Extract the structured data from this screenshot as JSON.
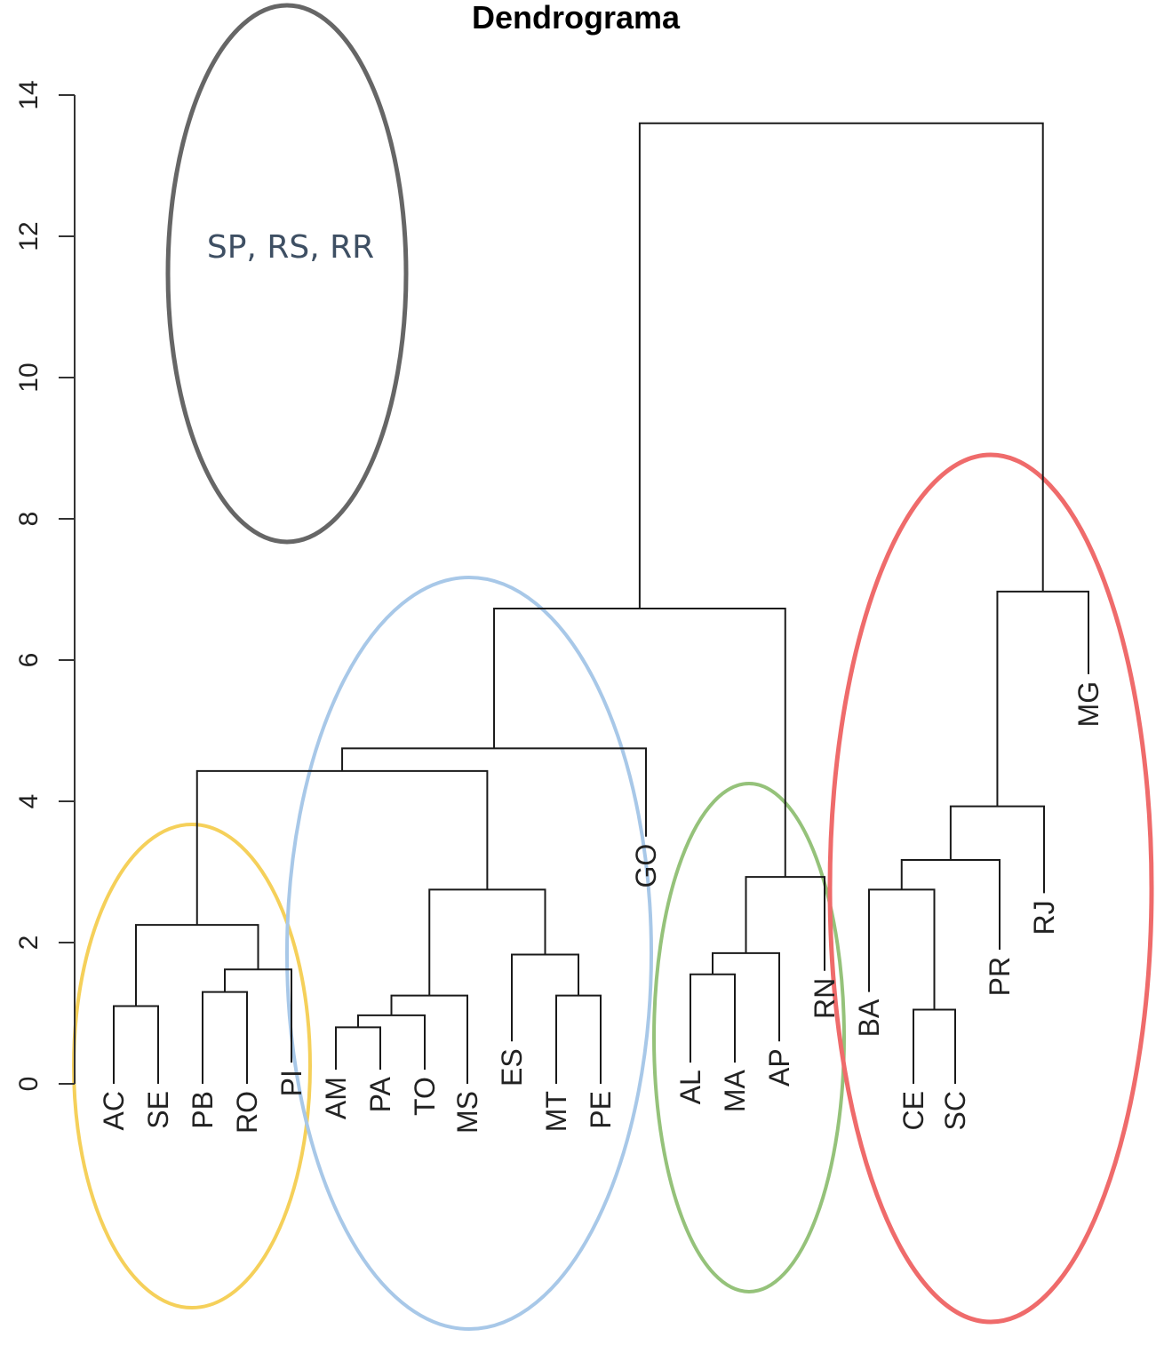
{
  "chart_data": {
    "type": "dendrogram",
    "title": "Dendrograma",
    "ylabel": "",
    "xlabel": "",
    "ylim": [
      0,
      14
    ],
    "yticks": [
      0,
      2,
      4,
      6,
      8,
      10,
      12,
      14
    ],
    "leaves": [
      "AC",
      "SE",
      "PB",
      "RO",
      "PI",
      "AM",
      "PA",
      "TO",
      "MS",
      "ES",
      "MT",
      "PE",
      "GO",
      "AL",
      "MA",
      "AP",
      "RN",
      "BA",
      "CE",
      "SC",
      "PR",
      "RJ",
      "MG"
    ],
    "leaf_heights": {
      "AC": 0,
      "SE": 0,
      "PB": 0,
      "RO": 0,
      "PI": 0.3,
      "AM": 0.2,
      "PA": 0.2,
      "TO": 0.2,
      "MS": 0,
      "ES": 0.6,
      "MT": 0,
      "PE": 0,
      "GO": 3.5,
      "AL": 0.3,
      "MA": 0.3,
      "AP": 0.6,
      "RN": 1.6,
      "BA": 1.3,
      "CE": 0,
      "SC": 0,
      "PR": 1.9,
      "RJ": 2.7,
      "MG": 5.8
    },
    "merges": [
      {
        "left": "AM",
        "right": "PA",
        "height": 0.8
      },
      {
        "left": "AC",
        "right": "SE",
        "height": 1.1
      },
      {
        "left": "CE",
        "right": "SC",
        "height": 1.05
      },
      {
        "left": "MT",
        "right": "PE",
        "height": 1.25
      },
      {
        "left": "PB",
        "right": "RO",
        "height": 1.3
      },
      {
        "left": "AL",
        "right": "MA",
        "height": 1.55
      },
      {
        "left": "AM-PA",
        "right": "TO",
        "height": 0.97
      },
      {
        "left": "AM-PA-TO",
        "right": "MS",
        "height": 1.25
      },
      {
        "left": "PB-RO",
        "right": "PI",
        "height": 1.62
      },
      {
        "left": "ES",
        "right": "MT-PE",
        "height": 1.83
      },
      {
        "left": "AL-MA",
        "right": "AP",
        "height": 1.85
      },
      {
        "left": "AC-SE",
        "right": "PB-RO-PI",
        "height": 2.25
      },
      {
        "left": "AM-PA-TO-MS",
        "right": "ES-MT-PE",
        "height": 2.75
      },
      {
        "left": "BA",
        "right": "CE-SC",
        "height": 2.75
      },
      {
        "left": "AL-MA-AP",
        "right": "RN",
        "height": 2.93
      },
      {
        "left": "BA-CE-SC",
        "right": "PR",
        "height": 3.17
      },
      {
        "left": "BA-CE-SC-PR",
        "right": "RJ",
        "height": 3.93
      },
      {
        "left": "AC-SE-PB-RO-PI",
        "right": "AM-PA-TO-MS-ES-MT-PE",
        "height": 4.43
      },
      {
        "left": "AC..PE",
        "right": "GO",
        "height": 4.75
      },
      {
        "left": "AC..GO",
        "right": "AL-MA-AP-RN",
        "height": 6.73
      },
      {
        "left": "BA-CE-SC-PR-RJ",
        "right": "MG",
        "height": 6.97
      },
      {
        "left": "AC..RN",
        "right": "BA..MG",
        "height": 13.6
      }
    ],
    "annotations": [
      {
        "text": "SP, RS, RR",
        "shape": "ellipse",
        "color": "#666666"
      }
    ],
    "cluster_ellipses": [
      {
        "members": [
          "AC",
          "SE",
          "PB",
          "RO",
          "PI"
        ],
        "color": "#f5d05a"
      },
      {
        "members": [
          "AM",
          "PA",
          "TO",
          "MS",
          "ES",
          "MT",
          "PE",
          "GO"
        ],
        "color": "#a8c8e8"
      },
      {
        "members": [
          "AL",
          "MA",
          "AP",
          "RN"
        ],
        "color": "#95c27a"
      },
      {
        "members": [
          "BA",
          "CE",
          "SC",
          "PR",
          "RJ",
          "MG"
        ],
        "color": "#ef6b6b"
      }
    ],
    "grid": false
  }
}
